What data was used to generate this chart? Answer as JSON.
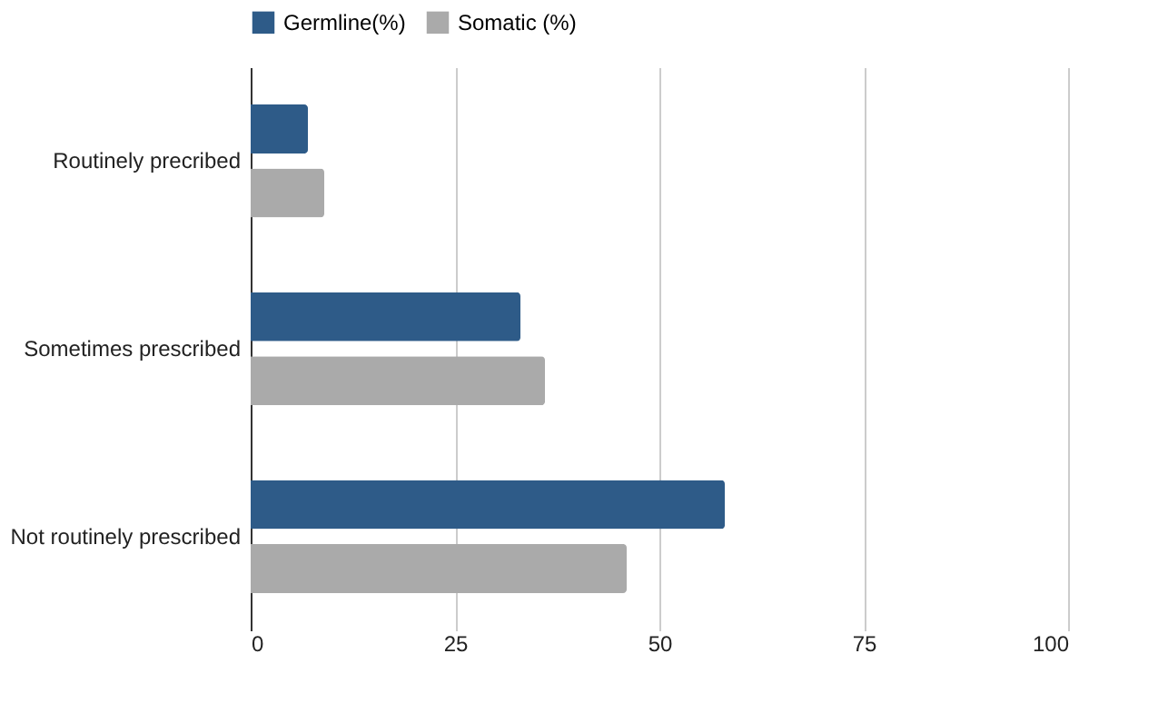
{
  "chart_data": {
    "type": "bar",
    "orientation": "horizontal",
    "categories": [
      "Routinely precribed",
      "Sometimes prescribed",
      "Not routinely prescribed"
    ],
    "series": [
      {
        "name": "Germline(%)",
        "color": "#2e5b88",
        "values": [
          7,
          33,
          58
        ]
      },
      {
        "name": "Somatic (%)",
        "color": "#aaaaaa",
        "values": [
          9,
          36,
          46
        ]
      }
    ],
    "xlim": [
      0,
      100
    ],
    "xticks": [
      0,
      25,
      50,
      75,
      100
    ],
    "grid": "x",
    "legend": "top"
  }
}
